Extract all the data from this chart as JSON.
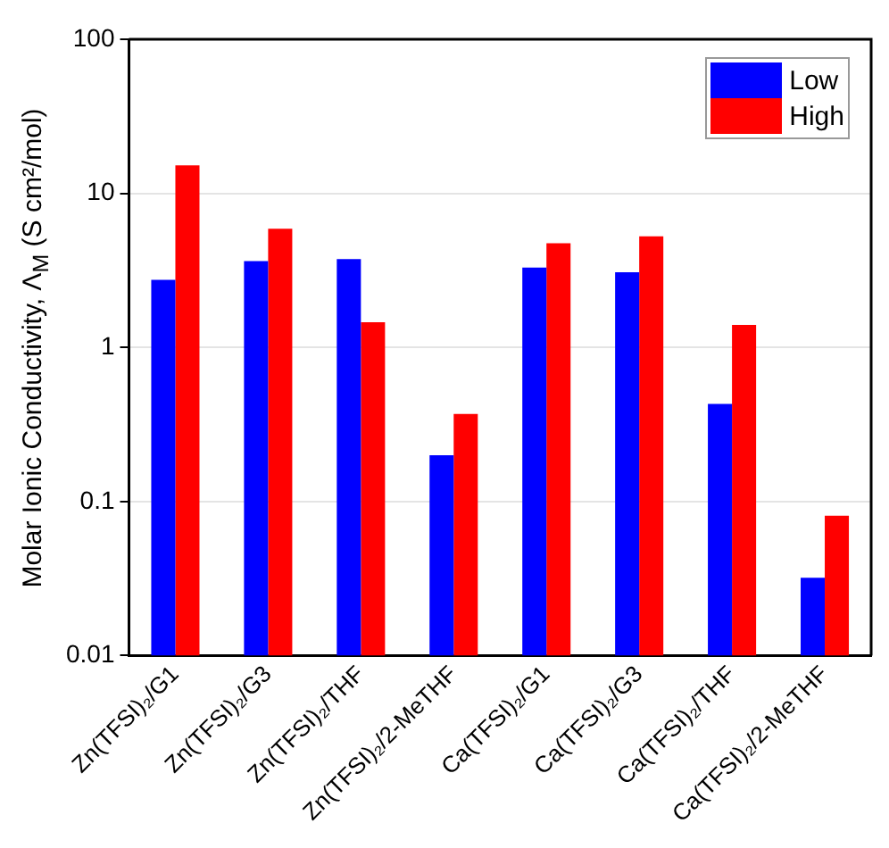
{
  "chart_data": {
    "type": "bar",
    "ylabel": "Molar Ionic Conductivity, Λ$_{M}$ (S cm²/mol)",
    "categories": [
      "Zn(TFSI)₂/G1",
      "Zn(TFSI)₂/G3",
      "Zn(TFSI)₂/THF",
      "Zn(TFSI)₂/2-MeTHF",
      "Ca(TFSI)₂/G1",
      "Ca(TFSI)₂/G3",
      "Ca(TFSI)₂/THF",
      "Ca(TFSI)₂/2-MeTHF"
    ],
    "series": [
      {
        "name": "Low",
        "color": "#0000ff",
        "values": [
          2.75,
          3.64,
          3.74,
          0.2,
          3.3,
          3.08,
          0.43,
          0.032
        ]
      },
      {
        "name": "High",
        "color": "#ff0000",
        "values": [
          15.2,
          5.9,
          1.46,
          0.37,
          4.74,
          5.27,
          1.4,
          0.081
        ]
      }
    ],
    "log": "y",
    "ylim": [
      0.01,
      100
    ],
    "yticks": [
      0.01,
      0.1,
      1,
      10,
      100
    ],
    "grid": "y",
    "legend": "top right"
  }
}
